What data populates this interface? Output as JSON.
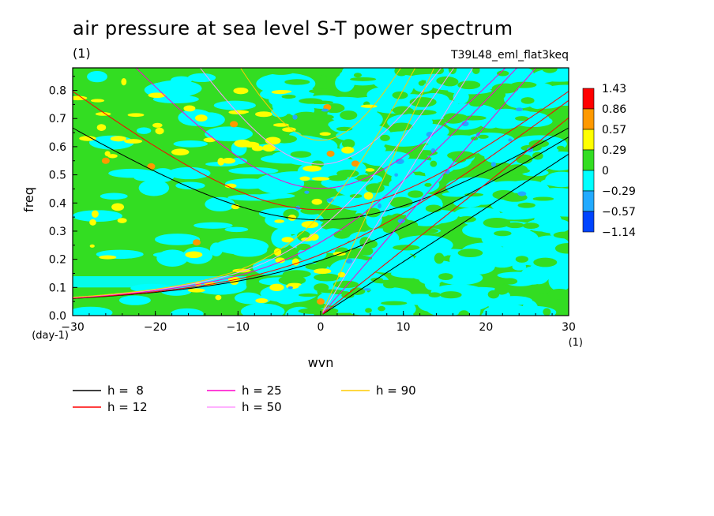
{
  "title": "air pressure at sea level S-T power spectrum",
  "subtitle": "(1)",
  "run_name": "T39L48_eml_flat3keq",
  "chart_data": {
    "type": "heatmap",
    "xlabel": "wvn",
    "ylabel": "freq",
    "x_unit": "(1)",
    "y_unit": "(day-1)",
    "xlim": [
      -30,
      30
    ],
    "ylim": [
      0,
      0.88
    ],
    "x_ticks": [
      -30,
      -20,
      -10,
      0,
      10,
      20,
      30
    ],
    "y_ticks": [
      0.0,
      0.1,
      0.2,
      0.3,
      0.4,
      0.5,
      0.6,
      0.7,
      0.8
    ],
    "colorbar": {
      "labels": [
        "1.43",
        "0.86",
        "0.57",
        "0.29",
        "0",
        "-0.29",
        "-0.57",
        "-1.14"
      ],
      "colors": [
        "#ff0000",
        "#ff9900",
        "#ffff00",
        "#33dd22",
        "#00ffff",
        "#22aaff",
        "#0044ff"
      ]
    },
    "dispersion_curves": [
      {
        "name": "h =  8",
        "h": 8,
        "color": "#000000"
      },
      {
        "name": "h = 12",
        "h": 12,
        "color": "#ff0000"
      },
      {
        "name": "h = 25",
        "h": 25,
        "color": "#ff00cc"
      },
      {
        "name": "h = 50",
        "h": 50,
        "color": "#ff99ff"
      },
      {
        "name": "h = 90",
        "h": 90,
        "color": "#ffcc00"
      }
    ]
  }
}
